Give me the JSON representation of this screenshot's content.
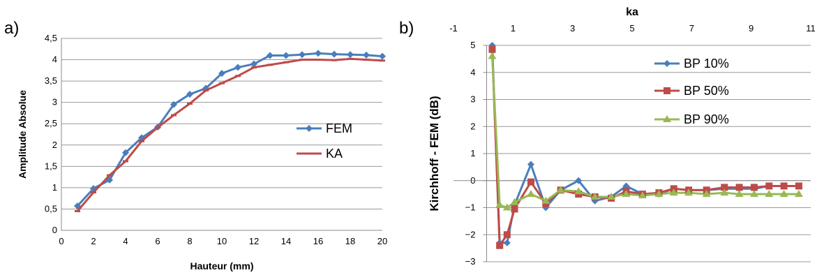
{
  "panels": {
    "a_label": "a)",
    "b_label": "b)"
  },
  "chart_data": [
    {
      "type": "line",
      "panel": "a)",
      "title": "",
      "xlabel": "Hauteur (mm)",
      "ylabel": "Amplitude Absolue",
      "xlim": [
        0,
        20
      ],
      "ylim": [
        0,
        4.5
      ],
      "xticks": [
        0,
        2,
        4,
        6,
        8,
        10,
        12,
        14,
        16,
        18,
        20
      ],
      "yticks": [
        0,
        0.5,
        1,
        1.5,
        2,
        2.5,
        3,
        3.5,
        4,
        4.5
      ],
      "xtick_labels": [
        "0",
        "2",
        "4",
        "6",
        "8",
        "10",
        "12",
        "14",
        "16",
        "18",
        "20"
      ],
      "ytick_labels": [
        "0",
        "0,5",
        "1",
        "1,5",
        "2",
        "2,5",
        "3",
        "3,5",
        "4",
        "4,5"
      ],
      "grid": "horizontal",
      "legend": "right",
      "x": [
        1,
        2,
        3,
        4,
        5,
        6,
        7,
        8,
        9,
        10,
        11,
        12,
        13,
        14,
        15,
        16,
        17,
        18,
        19,
        20
      ],
      "series": [
        {
          "name": "FEM",
          "color": "#4a7ebb",
          "marker": "diamond",
          "values": [
            0.57,
            0.98,
            1.18,
            1.82,
            2.17,
            2.42,
            2.95,
            3.19,
            3.33,
            3.68,
            3.82,
            3.9,
            4.1,
            4.1,
            4.12,
            4.15,
            4.13,
            4.12,
            4.11,
            4.08
          ]
        },
        {
          "name": "KA",
          "color": "#be4b48",
          "marker": "dash",
          "values": [
            0.45,
            0.89,
            1.29,
            1.62,
            2.09,
            2.41,
            2.7,
            2.97,
            3.28,
            3.45,
            3.62,
            3.82,
            3.88,
            3.94,
            4.0,
            4.0,
            3.99,
            4.02,
            4.0,
            3.98
          ]
        }
      ]
    },
    {
      "type": "line",
      "panel": "b)",
      "title": "",
      "xlabel": "ka",
      "ylabel": "Kirchhoff - FEM (dB)",
      "xlim": [
        -1,
        11
      ],
      "ylim": [
        -3,
        5
      ],
      "xticks": [
        -1,
        1,
        3,
        5,
        7,
        9,
        11
      ],
      "yticks": [
        -3,
        -2,
        -1,
        0,
        1,
        2,
        3,
        4,
        5
      ],
      "xtick_labels": [
        "-1",
        "1",
        "3",
        "5",
        "7",
        "9",
        "11"
      ],
      "ytick_labels": [
        "−3",
        "−2",
        "−1",
        "0",
        "1",
        "2",
        "3",
        "4",
        "5"
      ],
      "xaxis_position": "top",
      "grid": "horizontal",
      "legend": "top-right",
      "series": [
        {
          "name": "BP 10%",
          "color": "#4a7ebb",
          "marker": "diamond",
          "x": [
            0.3,
            0.55,
            0.8,
            1.05,
            1.6,
            2.1,
            2.6,
            3.2,
            3.75,
            4.3,
            4.8,
            5.35,
            5.9,
            6.4,
            6.9,
            7.5,
            8.1,
            8.6,
            9.1,
            9.6,
            10.1,
            10.6
          ],
          "values": [
            5.0,
            -2.3,
            -2.3,
            -0.9,
            0.6,
            -1.0,
            -0.35,
            0.0,
            -0.75,
            -0.6,
            -0.2,
            -0.5,
            -0.5,
            -0.3,
            -0.35,
            -0.35,
            -0.3,
            -0.3,
            -0.3,
            -0.2,
            -0.2,
            -0.2
          ]
        },
        {
          "name": "BP 50%",
          "color": "#be4b48",
          "marker": "square",
          "x": [
            0.3,
            0.55,
            0.8,
            1.05,
            1.6,
            2.1,
            2.6,
            3.2,
            3.75,
            4.3,
            4.8,
            5.35,
            5.9,
            6.4,
            6.9,
            7.5,
            8.1,
            8.6,
            9.1,
            9.6,
            10.1,
            10.6
          ],
          "values": [
            4.85,
            -2.4,
            -2.0,
            -1.05,
            -0.05,
            -0.85,
            -0.35,
            -0.5,
            -0.6,
            -0.65,
            -0.4,
            -0.5,
            -0.45,
            -0.3,
            -0.35,
            -0.35,
            -0.25,
            -0.25,
            -0.25,
            -0.2,
            -0.2,
            -0.2
          ]
        },
        {
          "name": "BP 90%",
          "color": "#98b954",
          "marker": "triangle",
          "x": [
            0.3,
            0.55,
            0.8,
            1.05,
            1.6,
            2.1,
            2.6,
            3.2,
            3.75,
            4.3,
            4.8,
            5.35,
            5.9,
            6.4,
            6.9,
            7.5,
            8.1,
            8.6,
            9.1,
            9.6,
            10.1,
            10.6
          ],
          "values": [
            4.6,
            -0.9,
            -1.0,
            -0.8,
            -0.5,
            -0.75,
            -0.35,
            -0.4,
            -0.6,
            -0.6,
            -0.5,
            -0.55,
            -0.5,
            -0.45,
            -0.45,
            -0.5,
            -0.45,
            -0.5,
            -0.5,
            -0.5,
            -0.5,
            -0.5
          ]
        }
      ]
    }
  ]
}
